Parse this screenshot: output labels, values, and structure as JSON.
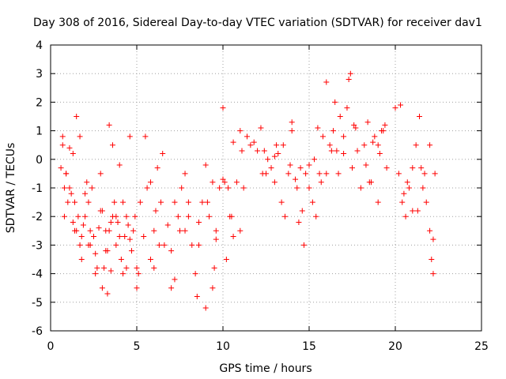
{
  "chart_data": {
    "type": "scatter",
    "title": "Day 308 of 2016, Sidereal Day-to-day VTEC variation (SDTVAR) for receiver dav1",
    "xlabel": "GPS time / hours",
    "ylabel": "SDTVAR / TECUs",
    "xlim": [
      0,
      25
    ],
    "ylim": [
      -6,
      4
    ],
    "x_ticks": [
      0,
      5,
      10,
      15,
      20,
      25
    ],
    "y_ticks": [
      -6,
      -5,
      -4,
      -3,
      -2,
      -1,
      0,
      1,
      2,
      3,
      4
    ],
    "grid": true,
    "marker": "+",
    "color": "#ff0000",
    "series": [
      {
        "name": "SDTVAR",
        "x": [
          0.6,
          0.7,
          0.8,
          0.9,
          1.0,
          1.1,
          1.2,
          1.3,
          1.4,
          1.5,
          1.6,
          1.7,
          1.8,
          1.9,
          2.0,
          2.1,
          2.2,
          2.3,
          2.4,
          2.5,
          2.6,
          2.7,
          2.8,
          2.9,
          3.0,
          3.1,
          3.2,
          3.3,
          3.4,
          3.5,
          3.6,
          3.7,
          3.8,
          3.9,
          4.0,
          4.1,
          4.2,
          4.3,
          4.4,
          4.5,
          4.6,
          4.7,
          4.8,
          4.9,
          5.0,
          5.2,
          5.4,
          5.6,
          5.8,
          6.0,
          6.2,
          6.4,
          6.6,
          6.8,
          7.0,
          7.2,
          7.4,
          7.6,
          7.8,
          8.0,
          8.2,
          8.4,
          8.6,
          8.8,
          9.0,
          9.2,
          9.4,
          9.6,
          9.8,
          10.0,
          10.2,
          10.4,
          10.6,
          10.8,
          11.0,
          11.2,
          11.4,
          11.6,
          11.8,
          12.0,
          12.2,
          12.4,
          12.6,
          12.8,
          13.0,
          13.2,
          13.4,
          13.6,
          13.8,
          14.0,
          14.2,
          14.4,
          14.6,
          14.8,
          15.0,
          15.2,
          15.4,
          15.6,
          15.8,
          16.0,
          16.2,
          16.4,
          16.6,
          16.8,
          17.0,
          17.2,
          17.4,
          17.6,
          17.8,
          18.0,
          18.2,
          18.4,
          18.6,
          18.8,
          19.0,
          19.2,
          19.4,
          20.0,
          20.2,
          20.4,
          20.6,
          20.8,
          21.0,
          21.2,
          21.4,
          21.6,
          21.8,
          22.0,
          22.1,
          22.2,
          22.3,
          0.7,
          0.9,
          1.1,
          1.3,
          1.5,
          1.7,
          2.0,
          2.3,
          2.6,
          2.9,
          3.2,
          3.4,
          3.6,
          3.8,
          4.2,
          4.6,
          5.0,
          5.5,
          6.0,
          6.5,
          7.0,
          7.5,
          8.0,
          8.5,
          9.0,
          9.4,
          9.6,
          10.0,
          10.3,
          10.6,
          11.0,
          12.5,
          13.0,
          13.5,
          14.0,
          14.5,
          15.0,
          15.5,
          16.0,
          16.5,
          17.0,
          17.5,
          18.5,
          19.0,
          19.5,
          20.5,
          21.0,
          21.5,
          22.0,
          0.8,
          1.4,
          1.8,
          2.2,
          3.0,
          3.3,
          3.5,
          4.0,
          4.4,
          5.1,
          5.8,
          6.1,
          6.3,
          7.2,
          7.8,
          8.6,
          9.1,
          9.5,
          10.1,
          10.5,
          11.1,
          12.3,
          13.1,
          13.9,
          14.3,
          14.7,
          15.3,
          15.7,
          16.3,
          16.7,
          17.3,
          17.7,
          18.3,
          18.7,
          19.1,
          19.3,
          20.3,
          20.7,
          21.3,
          21.7,
          22.2
        ],
        "y": [
          -0.3,
          0.5,
          -1.0,
          -0.5,
          -1.5,
          0.4,
          -1.2,
          -2.2,
          -1.5,
          -2.5,
          -2.0,
          -3.0,
          -2.7,
          -2.3,
          -1.2,
          -0.8,
          -1.5,
          -2.5,
          -1.0,
          -2.7,
          -3.3,
          -3.8,
          -2.4,
          -1.8,
          -4.5,
          -3.8,
          -3.2,
          -4.7,
          -2.5,
          -3.9,
          -2.0,
          -1.5,
          -3.0,
          -2.2,
          -2.7,
          -3.5,
          -4.0,
          -2.7,
          -2.0,
          -2.3,
          -2.8,
          -3.2,
          -2.5,
          -2.0,
          -4.5,
          -1.5,
          -2.7,
          -1.0,
          -3.5,
          -3.8,
          -0.3,
          -1.5,
          -3.0,
          -2.3,
          -3.2,
          -1.5,
          -2.0,
          -1.0,
          -0.5,
          -1.5,
          -3.0,
          -4.0,
          -2.2,
          -1.5,
          -0.2,
          -2.0,
          -4.5,
          -2.5,
          -1.0,
          1.8,
          -3.5,
          -2.0,
          -2.7,
          -0.8,
          -2.5,
          -1.0,
          0.8,
          0.5,
          0.6,
          0.3,
          1.1,
          0.3,
          0.0,
          -0.3,
          -0.8,
          0.2,
          -1.5,
          -2.0,
          -0.5,
          1.3,
          -0.7,
          -2.2,
          -1.8,
          -0.5,
          -1.0,
          -1.5,
          -2.0,
          -0.5,
          0.8,
          -0.5,
          0.5,
          1.0,
          0.3,
          1.5,
          0.2,
          1.8,
          3.0,
          1.2,
          0.3,
          -1.0,
          0.5,
          1.3,
          -0.8,
          0.8,
          0.5,
          1.0,
          1.2,
          1.8,
          -0.5,
          -1.5,
          -2.0,
          -1.0,
          -0.3,
          0.5,
          1.5,
          -1.0,
          -1.5,
          -2.5,
          -3.5,
          -2.8,
          -0.5,
          0.8,
          -0.5,
          -1.0,
          0.2,
          1.5,
          0.8,
          -2.0,
          -3.0,
          -4.0,
          -0.5,
          -2.5,
          1.2,
          0.5,
          -2.0,
          -1.5,
          0.8,
          -3.8,
          0.8,
          -2.5,
          0.2,
          -4.5,
          -2.5,
          -2.0,
          -4.8,
          -5.2,
          -0.8,
          -2.8,
          -0.7,
          -1.0,
          0.6,
          1.0,
          -0.5,
          0.1,
          0.5,
          1.0,
          -0.3,
          -0.2,
          1.1,
          2.7,
          2.0,
          0.8,
          -0.3,
          -0.8,
          -1.5,
          -0.3,
          -1.2,
          -1.8,
          -0.3,
          0.5,
          -2.0,
          -2.5,
          -3.5,
          -3.0,
          -1.8,
          -3.2,
          -2.2,
          -0.2,
          -3.8,
          -4.0,
          -0.8,
          -1.8,
          -3.0,
          -4.2,
          -2.5,
          -3.0,
          -1.5,
          -3.8,
          -0.8,
          -2.0,
          0.3,
          -0.5,
          0.5,
          -0.2,
          -1.0,
          -3.0,
          0.0,
          -0.8,
          0.3,
          -0.5,
          2.8,
          1.1,
          -0.2,
          0.6,
          0.2,
          1.0,
          1.9,
          -0.8,
          -1.8,
          -0.5,
          -4.0
        ]
      }
    ]
  }
}
